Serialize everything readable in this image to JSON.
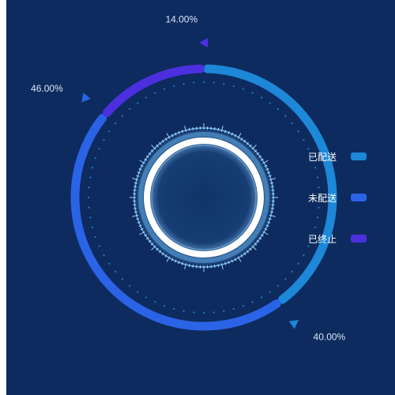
{
  "colors": {
    "background": "#0d2b5e",
    "dots": "#1e7fc4",
    "ring_glow": "#6fc3ff",
    "ring_core": "#ffffff"
  },
  "chart_data": {
    "type": "pie",
    "subtype": "donut",
    "categories": [
      "已配送",
      "未配送",
      "已终止"
    ],
    "values": [
      40,
      46,
      14
    ],
    "value_labels": [
      "40.00%",
      "46.00%",
      "14.00%"
    ],
    "series": [
      {
        "name": "已配送",
        "value": 40,
        "color": "#1d87d8"
      },
      {
        "name": "未配送",
        "value": 46,
        "color": "#2b63e6"
      },
      {
        "name": "已终止",
        "value": 14,
        "color": "#4c30e0"
      }
    ],
    "legend_position": "right",
    "title": ""
  },
  "legend": {
    "items": [
      {
        "label": "已配送",
        "color": "#1d87d8"
      },
      {
        "label": "未配送",
        "color": "#2b63e6"
      },
      {
        "label": "已终止",
        "color": "#4c30e0"
      }
    ]
  }
}
